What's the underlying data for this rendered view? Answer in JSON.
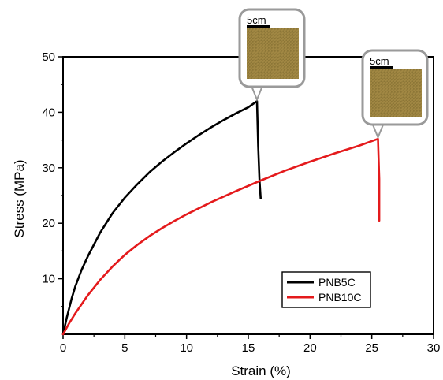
{
  "chart_data": {
    "type": "line",
    "xlabel": "Strain (%)",
    "ylabel": "Stress (MPa)",
    "xlim": [
      0,
      30
    ],
    "ylim": [
      0,
      50
    ],
    "xticks": [
      0,
      5,
      10,
      15,
      20,
      25,
      30
    ],
    "yticks": [
      10,
      20,
      30,
      40,
      50
    ],
    "grid": false,
    "legend_position": "bottom-right",
    "series": [
      {
        "name": "PNB5C",
        "color": "#000000",
        "x": [
          0,
          0.3,
          0.7,
          1,
          1.5,
          2,
          3,
          4,
          5,
          6,
          7,
          8,
          9,
          10,
          11,
          12,
          13,
          14,
          15,
          15.7,
          15.8,
          15.9,
          16.0
        ],
        "y": [
          0,
          3,
          6.5,
          8.7,
          11.6,
          14,
          18.3,
          21.8,
          24.6,
          27,
          29.2,
          31.1,
          32.8,
          34.4,
          35.9,
          37.3,
          38.6,
          39.8,
          40.9,
          42,
          34,
          28,
          24.5
        ]
      },
      {
        "name": "PNB10C",
        "color": "#e41a1c",
        "x": [
          0,
          0.5,
          1,
          2,
          3,
          4,
          5,
          6,
          7,
          8,
          9,
          10,
          12,
          14,
          16,
          18,
          20,
          22,
          24,
          25.5,
          25.6,
          25.6
        ],
        "y": [
          0,
          2,
          3.8,
          7,
          9.8,
          12.2,
          14.3,
          16.1,
          17.7,
          19.1,
          20.4,
          21.6,
          23.8,
          25.8,
          27.7,
          29.5,
          31.1,
          32.6,
          34,
          35.2,
          28,
          20.5
        ]
      }
    ],
    "callouts": [
      {
        "label": "5cm",
        "anchor_x": 15.7,
        "anchor_y": 42
      },
      {
        "label": "5cm",
        "anchor_x": 25.5,
        "anchor_y": 35.2
      }
    ]
  }
}
